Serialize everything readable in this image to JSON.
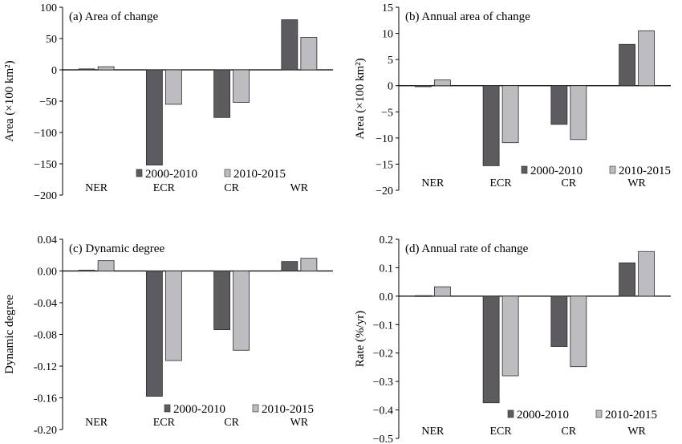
{
  "chart_data": [
    {
      "type": "bar",
      "panel_id": "a",
      "title": "(a) Area of change",
      "ylabel": "Area (×100 km²)",
      "xlabel": "",
      "categories": [
        "NER",
        "ECR",
        "CR",
        "WR"
      ],
      "series": [
        {
          "name": "2000-2010",
          "values": [
            1.5,
            -152,
            -76,
            80
          ]
        },
        {
          "name": "2010-2015",
          "values": [
            5,
            -55,
            -52,
            52
          ]
        }
      ],
      "ylim": [
        -200,
        100
      ],
      "yticks": [
        -200,
        -150,
        -100,
        -50,
        0,
        50,
        100
      ],
      "ytick_labels": [
        "−200",
        "−150",
        "−100",
        "−50",
        "0",
        "50",
        "100"
      ],
      "legend_position": "bottom-center",
      "grid": false
    },
    {
      "type": "bar",
      "panel_id": "b",
      "title": "(b) Annual area of change",
      "ylabel": "Area (×100 km²)",
      "xlabel": "",
      "categories": [
        "NER",
        "ECR",
        "CR",
        "WR"
      ],
      "series": [
        {
          "name": "2000-2010",
          "values": [
            -0.2,
            -15.3,
            -7.4,
            7.9
          ]
        },
        {
          "name": "2010-2015",
          "values": [
            1.1,
            -10.9,
            -10.3,
            10.5
          ]
        }
      ],
      "ylim": [
        -20,
        15
      ],
      "yticks": [
        -20,
        -15,
        -10,
        -5,
        0,
        5,
        10,
        15
      ],
      "ytick_labels": [
        "−20",
        "−15",
        "−10",
        "−5",
        "0",
        "5",
        "10",
        "15"
      ],
      "legend_position": "bottom-right",
      "grid": false
    },
    {
      "type": "bar",
      "panel_id": "c",
      "title": "(c) Dynamic degree",
      "ylabel": "Dynamic degree",
      "xlabel": "",
      "categories": [
        "NER",
        "ECR",
        "CR",
        "WR"
      ],
      "series": [
        {
          "name": "2000-2010",
          "values": [
            0.001,
            -0.158,
            -0.074,
            0.012
          ]
        },
        {
          "name": "2010-2015",
          "values": [
            0.013,
            -0.113,
            -0.1,
            0.016
          ]
        }
      ],
      "ylim": [
        -0.2,
        0.04
      ],
      "yticks": [
        -0.2,
        -0.16,
        -0.12,
        -0.08,
        -0.04,
        0,
        0.04
      ],
      "ytick_labels": [
        "-0.20",
        "-0.16",
        "-0.12",
        "-0.08",
        "-0.04",
        "0.00",
        "0.04"
      ],
      "legend_position": "bottom-right",
      "grid": false
    },
    {
      "type": "bar",
      "panel_id": "d",
      "title": "(d) Annual rate of change",
      "ylabel": "Rate (%/yr)",
      "xlabel": "",
      "categories": [
        "NER",
        "ECR",
        "CR",
        "WR"
      ],
      "series": [
        {
          "name": "2000-2010",
          "values": [
            0.002,
            -0.375,
            -0.177,
            0.117
          ]
        },
        {
          "name": "2010-2015",
          "values": [
            0.033,
            -0.28,
            -0.248,
            0.157
          ]
        }
      ],
      "ylim": [
        -0.5,
        0.2
      ],
      "yticks": [
        -0.5,
        -0.4,
        -0.3,
        -0.2,
        -0.1,
        0,
        0.1,
        0.2
      ],
      "ytick_labels": [
        "−0.5",
        "−0.4",
        "−0.3",
        "−0.2",
        "−0.1",
        "0.0",
        "0.1",
        "0.2"
      ],
      "legend_position": "bottom-right",
      "grid": false
    }
  ],
  "colors": {
    "series_2000_2010": "#5d5b5f",
    "series_2010_2015": "#bdbcc0",
    "bar_outline": "#2a2a2a"
  }
}
